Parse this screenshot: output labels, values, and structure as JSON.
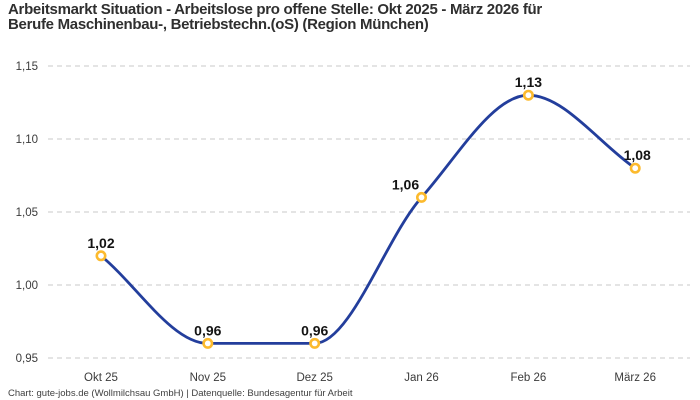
{
  "header": {
    "title_line1": "Arbeitsmarkt Situation - Arbeitslose pro offene Stelle: Okt 2025 - März 2026 für",
    "title_line2": "Berufe Maschinenbau-, Betriebstechn.(oS) (Region München)"
  },
  "chart_data": {
    "type": "line",
    "title": "Arbeitsmarkt Situation - Arbeitslose pro offene Stelle: Okt 2025 - März 2026 für Berufe Maschinenbau-, Betriebstechn.(oS) (Region München)",
    "categories": [
      "Okt 25",
      "Nov 25",
      "Dez 25",
      "Jan 26",
      "Feb 26",
      "März 26"
    ],
    "values": [
      1.02,
      0.96,
      0.96,
      1.06,
      1.13,
      1.08
    ],
    "point_labels": [
      "1,02",
      "0,96",
      "0,96",
      "1,06",
      "1,13",
      "1,08"
    ],
    "xlabel": "",
    "ylabel": "",
    "ylim": [
      0.95,
      1.15
    ],
    "yticks": [
      0.95,
      1.0,
      1.05,
      1.1,
      1.15
    ],
    "ytick_labels": [
      "0,95",
      "1,00",
      "1,05",
      "1,10",
      "1,15"
    ],
    "grid": "horizontal-dashed",
    "legend": "none",
    "curve": "smooth-monotone",
    "colors": {
      "line": "#233E9C",
      "marker_ring": "#FCBA2D",
      "marker_fill": "#FFFFFF",
      "grid": "#C9C9C9",
      "label_text": "#141414",
      "axis_text": "#3B3B3B"
    }
  },
  "footer": {
    "credit": "Chart: gute-jobs.de (Wollmilchsau GmbH) | Datenquelle: Bundesagentur für Arbeit"
  }
}
